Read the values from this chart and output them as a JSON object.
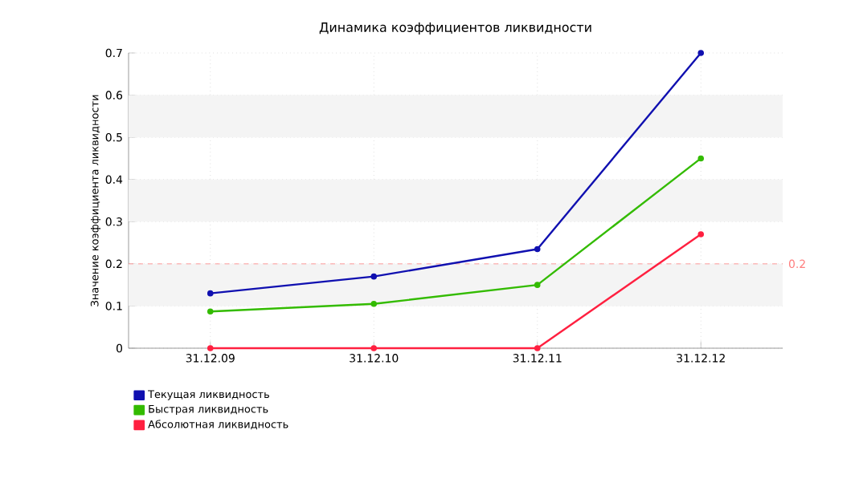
{
  "chart_data": {
    "type": "line",
    "title": "Динамика коэффициентов ликвидности",
    "ylabel": "Значение коэффициента ликвидности",
    "categories": [
      "31.12.09",
      "31.12.10",
      "31.12.11",
      "31.12.12"
    ],
    "series": [
      {
        "name": "Текущая ликвидность",
        "color": "#1010b0",
        "values": [
          0.13,
          0.17,
          0.235,
          0.7
        ]
      },
      {
        "name": "Быстрая ликвидность",
        "color": "#33bb00",
        "values": [
          0.087,
          0.105,
          0.15,
          0.45
        ]
      },
      {
        "name": "Абсолютная ликвидность",
        "color": "#ff2040",
        "values": [
          0,
          0,
          0,
          0.27
        ]
      }
    ],
    "ylim": [
      0,
      0.7
    ],
    "yticks": [
      0,
      0.1,
      0.2,
      0.3,
      0.4,
      0.5,
      0.6,
      0.7
    ],
    "ref_lines": [
      {
        "axis": "y",
        "value": 0.2,
        "label": "0.2",
        "color": "#ff8080",
        "line_style": "dashed"
      }
    ],
    "bands": [
      {
        "axis": "y",
        "from": 0.1,
        "to": 0.2,
        "color": "#f4f4f4"
      },
      {
        "axis": "y",
        "from": 0.3,
        "to": 0.4,
        "color": "#f4f4f4"
      },
      {
        "axis": "y",
        "from": 0.5,
        "to": 0.6,
        "color": "#f4f4f4"
      }
    ],
    "grid": true,
    "legend": "bottom left",
    "marker": "circle",
    "line_style": "solid"
  }
}
